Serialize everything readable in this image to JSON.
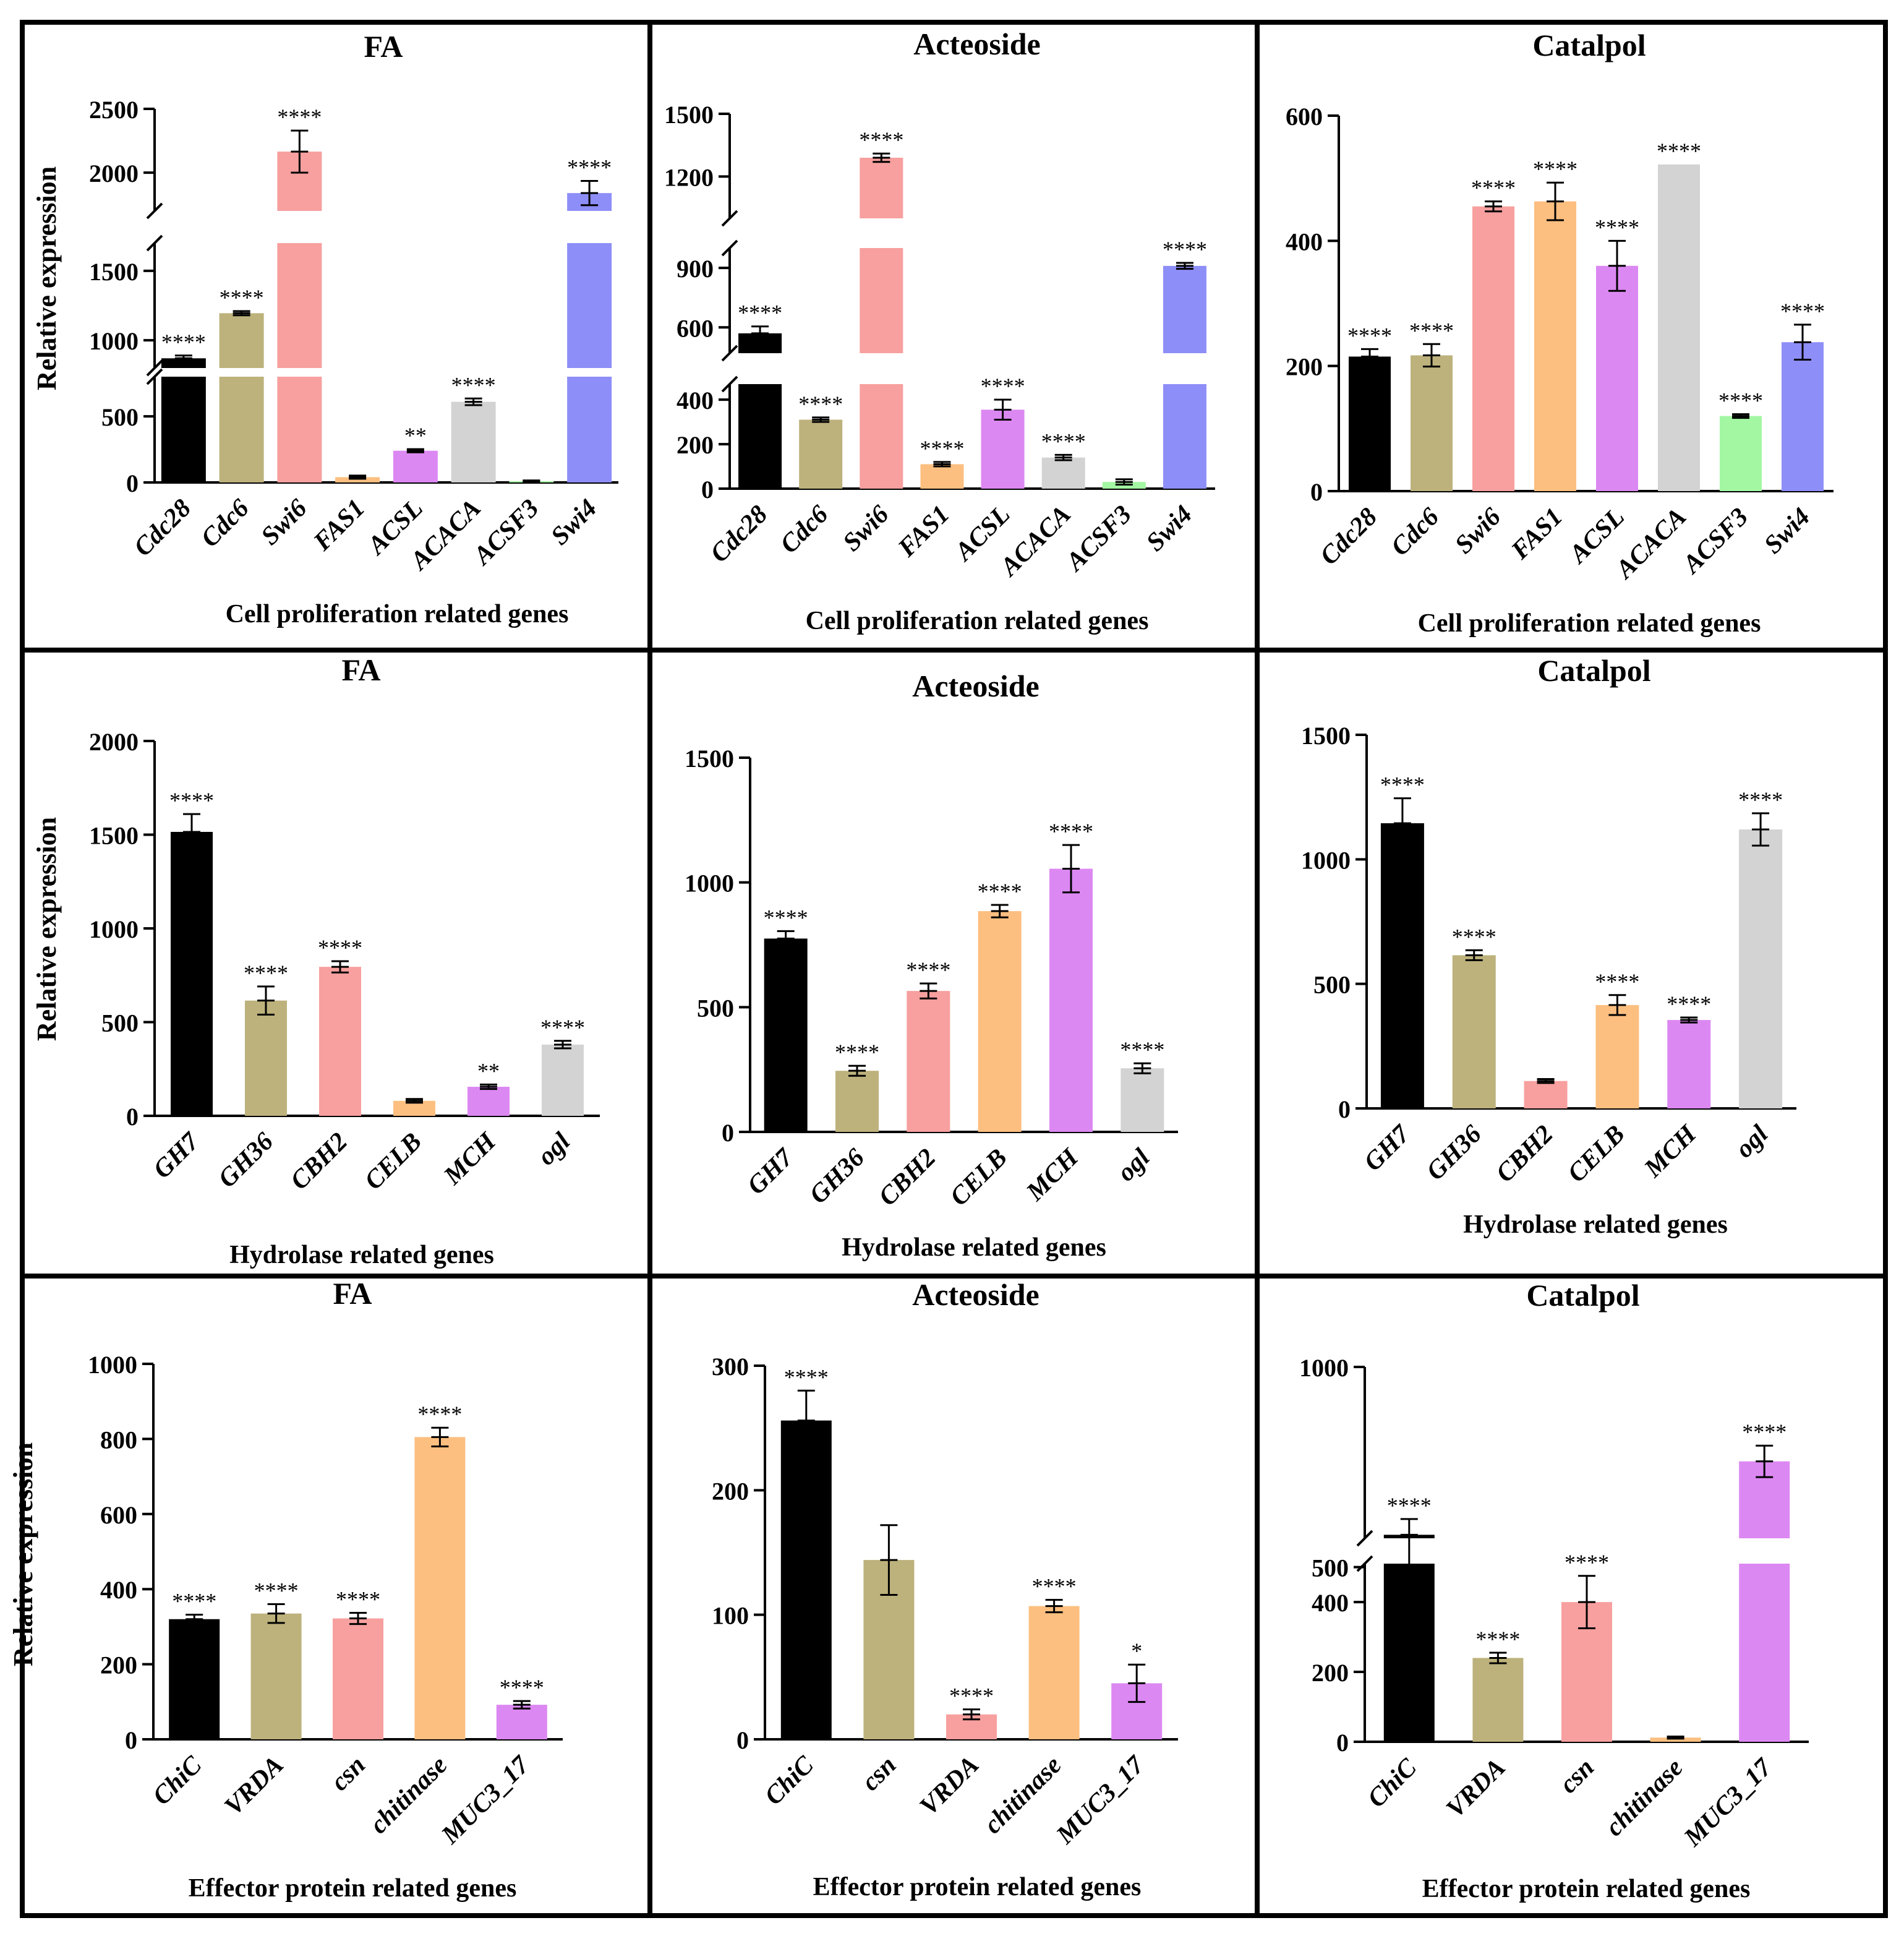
{
  "colors": {
    "black": "#000000",
    "olive": "#BDB27C",
    "salmon": "#F7A09F",
    "orange": "#FCBF80",
    "violet": "#DC88F2",
    "gray": "#D3D3D3",
    "green": "#A3F7A3",
    "blue": "#8E8EF8",
    "panel_border": "#000000"
  },
  "chart_data": [
    {
      "id": "p1",
      "type": "bar",
      "title": "FA",
      "ylabel": "Relative expression",
      "xlabel": "Cell proliferation related genes",
      "categories": [
        "Cdc28",
        "Cdc6",
        "Swi6",
        "FAS1",
        "ACSL",
        "ACACA",
        "ACSF3",
        "Swi4"
      ],
      "values": [
        870,
        1195,
        2165,
        40,
        240,
        610,
        10,
        1840
      ],
      "errors": [
        20,
        15,
        165,
        12,
        12,
        25,
        5,
        95
      ],
      "significance": [
        "****",
        "****",
        "****",
        "",
        "**",
        "****",
        "",
        "****"
      ],
      "bar_colors": [
        "black",
        "olive",
        "salmon",
        "orange",
        "violet",
        "gray",
        "green",
        "blue"
      ],
      "y_segments": [
        [
          0,
          800
        ],
        [
          800,
          1700
        ],
        [
          1700,
          2500
        ]
      ],
      "yticks": [
        0,
        500,
        1000,
        1500,
        2000,
        2500
      ]
    },
    {
      "id": "p2",
      "type": "bar",
      "title": "Acteoside",
      "xlabel": "Cell proliferation related genes",
      "categories": [
        "Cdc28",
        "Cdc6",
        "Swi6",
        "FAS1",
        "ACSL",
        "ACACA",
        "ACSF3",
        "Swi4"
      ],
      "values": [
        570,
        310,
        1290,
        110,
        355,
        140,
        30,
        910
      ],
      "errors": [
        35,
        10,
        20,
        10,
        45,
        12,
        12,
        15
      ],
      "significance": [
        "****",
        "****",
        "****",
        "****",
        "****",
        "****",
        "",
        "****"
      ],
      "bar_colors": [
        "black",
        "olive",
        "salmon",
        "orange",
        "violet",
        "gray",
        "green",
        "blue"
      ],
      "y_segments": [
        [
          0,
          470
        ],
        [
          470,
          1000
        ],
        [
          1000,
          1500
        ]
      ],
      "yticks": [
        0,
        200,
        400,
        600,
        900,
        1200,
        1500
      ]
    },
    {
      "id": "p3",
      "type": "bar",
      "title": "Catalpol",
      "xlabel": "Cell proliferation related genes",
      "categories": [
        "Cdc28",
        "Cdc6",
        "Swi6",
        "FAS1",
        "ACSL",
        "ACACA",
        "ACSF3",
        "Swi4"
      ],
      "values": [
        215,
        217,
        455,
        463,
        360,
        522,
        120,
        238
      ],
      "errors": [
        12,
        18,
        8,
        30,
        40,
        0,
        3,
        28
      ],
      "significance": [
        "****",
        "****",
        "****",
        "****",
        "****",
        "****",
        "****",
        "****"
      ],
      "bar_colors": [
        "black",
        "olive",
        "salmon",
        "orange",
        "violet",
        "gray",
        "green",
        "blue"
      ],
      "y_segments": [
        [
          0,
          600
        ]
      ],
      "yticks": [
        0,
        200,
        400,
        600
      ]
    },
    {
      "id": "p4",
      "type": "bar",
      "title": "FA",
      "ylabel": "Relative expression",
      "xlabel": "Hydrolase related genes",
      "categories": [
        "GH7",
        "GH36",
        "CBH2",
        "CELB",
        "MCH",
        "ogl"
      ],
      "values": [
        1515,
        615,
        795,
        80,
        155,
        380
      ],
      "errors": [
        95,
        75,
        30,
        10,
        12,
        20
      ],
      "significance": [
        "****",
        "****",
        "****",
        "",
        "**",
        "****"
      ],
      "bar_colors": [
        "black",
        "olive",
        "salmon",
        "orange",
        "violet",
        "gray"
      ],
      "y_segments": [
        [
          0,
          2000
        ]
      ],
      "yticks": [
        0,
        500,
        1000,
        1500,
        2000
      ]
    },
    {
      "id": "p5",
      "type": "bar",
      "title": "Acteoside",
      "xlabel": "Hydrolase related genes",
      "categories": [
        "GH7",
        "GH36",
        "CBH2",
        "CELB",
        "MCH",
        "ogl"
      ],
      "values": [
        775,
        245,
        565,
        885,
        1055,
        255
      ],
      "errors": [
        30,
        20,
        30,
        25,
        95,
        20
      ],
      "significance": [
        "****",
        "****",
        "****",
        "****",
        "****",
        "****"
      ],
      "bar_colors": [
        "black",
        "olive",
        "salmon",
        "orange",
        "violet",
        "gray"
      ],
      "y_segments": [
        [
          0,
          1500
        ]
      ],
      "yticks": [
        0,
        500,
        1000,
        1500
      ]
    },
    {
      "id": "p6",
      "type": "bar",
      "title": "Catalpol",
      "xlabel": "Hydrolase related genes",
      "categories": [
        "GH7",
        "GH36",
        "CBH2",
        "CELB",
        "MCH",
        "ogl"
      ],
      "values": [
        1145,
        615,
        110,
        415,
        355,
        1120
      ],
      "errors": [
        100,
        20,
        8,
        40,
        10,
        65
      ],
      "significance": [
        "****",
        "****",
        "",
        "****",
        "****",
        "****"
      ],
      "bar_colors": [
        "black",
        "olive",
        "salmon",
        "orange",
        "violet",
        "gray"
      ],
      "y_segments": [
        [
          0,
          1500
        ]
      ],
      "yticks": [
        0,
        500,
        1000,
        1500
      ]
    },
    {
      "id": "p7",
      "type": "bar",
      "title": "FA",
      "ylabel": "Relative expression",
      "xlabel": "Effector protein related genes",
      "categories": [
        "ChiC",
        "VRDA",
        "csn",
        "chitinase",
        "MUC3_17"
      ],
      "values": [
        320,
        335,
        322,
        805,
        92
      ],
      "errors": [
        12,
        25,
        15,
        25,
        10
      ],
      "significance": [
        "****",
        "****",
        "****",
        "****",
        "****"
      ],
      "bar_colors": [
        "black",
        "olive",
        "salmon",
        "orange",
        "violet"
      ],
      "y_segments": [
        [
          0,
          1000
        ]
      ],
      "yticks": [
        0,
        200,
        400,
        600,
        800,
        1000
      ]
    },
    {
      "id": "p8",
      "type": "bar",
      "title": "Acteoside",
      "xlabel": "Effector protein related genes",
      "categories": [
        "ChiC",
        "csn",
        "VRDA",
        "chitinase",
        "MUC3_17"
      ],
      "values": [
        256,
        144,
        20,
        107,
        45
      ],
      "errors": [
        24,
        28,
        4,
        5,
        15
      ],
      "significance": [
        "****",
        "",
        "****",
        "****",
        "*"
      ],
      "bar_colors": [
        "black",
        "olive",
        "salmon",
        "orange",
        "violet"
      ],
      "y_segments": [
        [
          0,
          300
        ]
      ],
      "yticks": [
        0,
        100,
        200,
        300
      ]
    },
    {
      "id": "p9",
      "type": "bar",
      "title": "Catalpol",
      "xlabel": "Effector protein related genes",
      "categories": [
        "ChiC",
        "VRDA",
        "csn",
        "chitinase",
        "MUC3_17"
      ],
      "values": [
        520,
        240,
        400,
        12,
        730
      ],
      "errors": [
        45,
        15,
        75,
        3,
        45
      ],
      "significance": [
        "****",
        "****",
        "****",
        "",
        "****"
      ],
      "bar_colors": [
        "black",
        "olive",
        "salmon",
        "orange",
        "violet"
      ],
      "y_segments": [
        [
          0,
          510
        ],
        [
          510,
          1000
        ]
      ],
      "yticks": [
        0,
        200,
        400,
        500,
        1000
      ]
    }
  ]
}
